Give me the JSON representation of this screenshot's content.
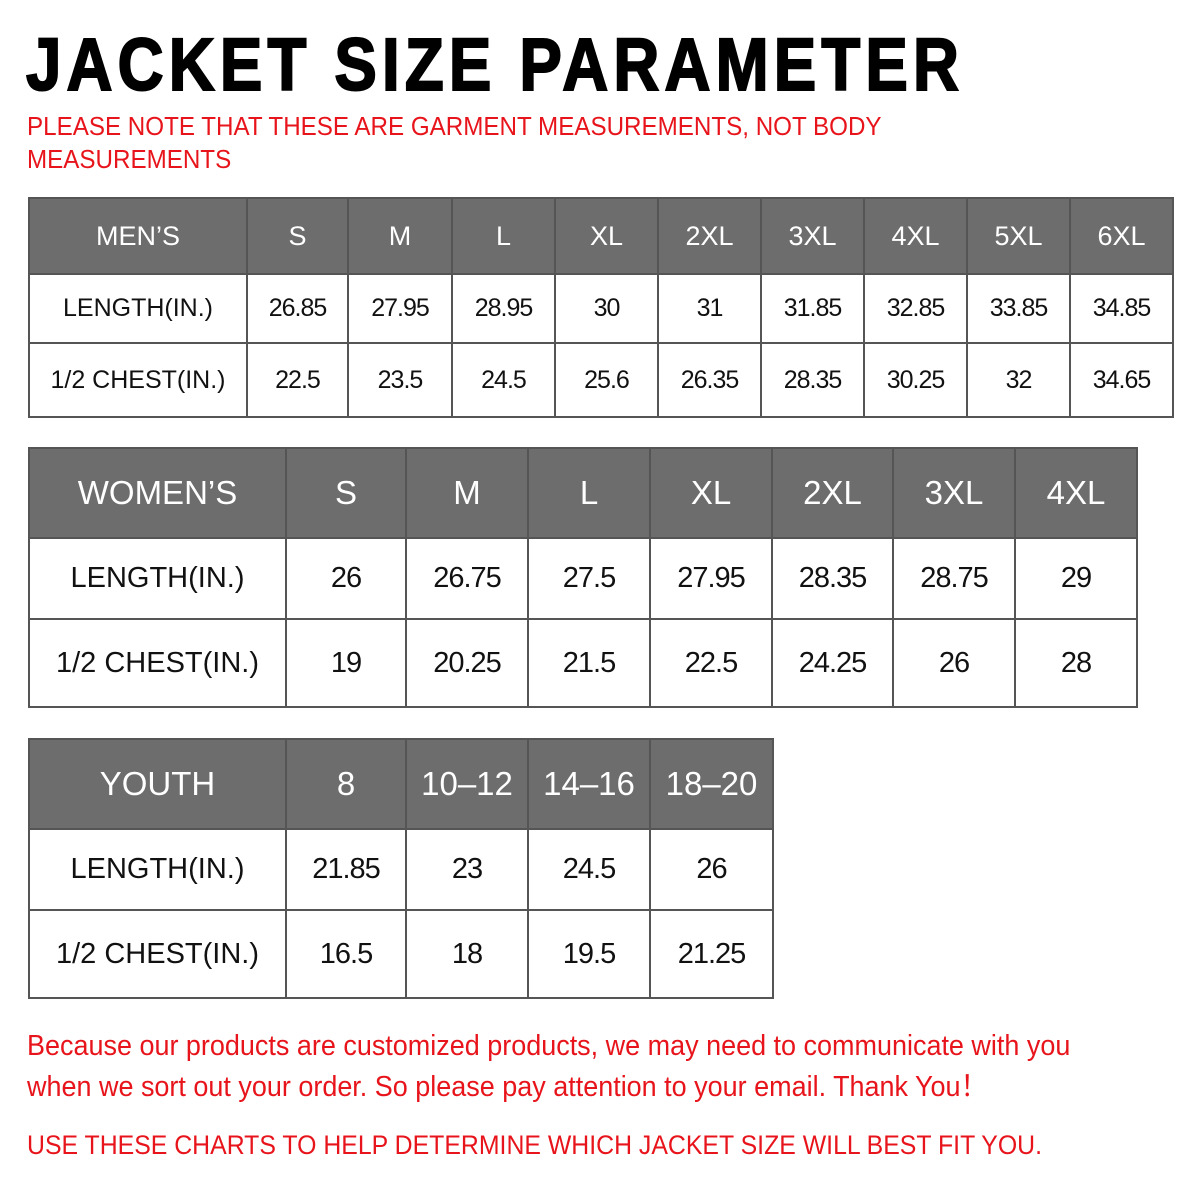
{
  "title": "JACKET SIZE PARAMETER",
  "note": "PLEASE NOTE THAT THESE ARE GARMENT MEASUREMENTS, NOT BODY MEASUREMENTS",
  "colors": {
    "header_bg": "#6d6d6d",
    "accent_red": "#e8141b"
  },
  "mens": {
    "header": "MEN’S",
    "sizes": [
      "S",
      "M",
      "L",
      "XL",
      "2XL",
      "3XL",
      "4XL",
      "5XL",
      "6XL"
    ],
    "rows": [
      {
        "label": "LENGTH(IN.)",
        "values": [
          "26.85",
          "27.95",
          "28.95",
          "30",
          "31",
          "31.85",
          "32.85",
          "33.85",
          "34.85"
        ]
      },
      {
        "label": "1/2 CHEST(IN.)",
        "values": [
          "22.5",
          "23.5",
          "24.5",
          "25.6",
          "26.35",
          "28.35",
          "30.25",
          "32",
          "34.65"
        ]
      }
    ]
  },
  "womens": {
    "header": "WOMEN’S",
    "sizes": [
      "S",
      "M",
      "L",
      "XL",
      "2XL",
      "3XL",
      "4XL"
    ],
    "rows": [
      {
        "label": "LENGTH(IN.)",
        "values": [
          "26",
          "26.75",
          "27.5",
          "27.95",
          "28.35",
          "28.75",
          "29"
        ]
      },
      {
        "label": "1/2 CHEST(IN.)",
        "values": [
          "19",
          "20.25",
          "21.5",
          "22.5",
          "24.25",
          "26",
          "28"
        ]
      }
    ]
  },
  "youth": {
    "header": "YOUTH",
    "sizes": [
      "8",
      "10–12",
      "14–16",
      "18–20"
    ],
    "rows": [
      {
        "label": "LENGTH(IN.)",
        "values": [
          "21.85",
          "23",
          "24.5",
          "26"
        ]
      },
      {
        "label": "1/2 CHEST(IN.)",
        "values": [
          "16.5",
          "18",
          "19.5",
          "21.25"
        ]
      }
    ]
  },
  "footer": "Because our products are customized products, we may need to communicate with you when we sort out your order. So please pay attention to your email. Thank You！",
  "footer2": "USE THESE CHARTS TO HELP DETERMINE WHICH JACKET SIZE WILL BEST FIT YOU."
}
